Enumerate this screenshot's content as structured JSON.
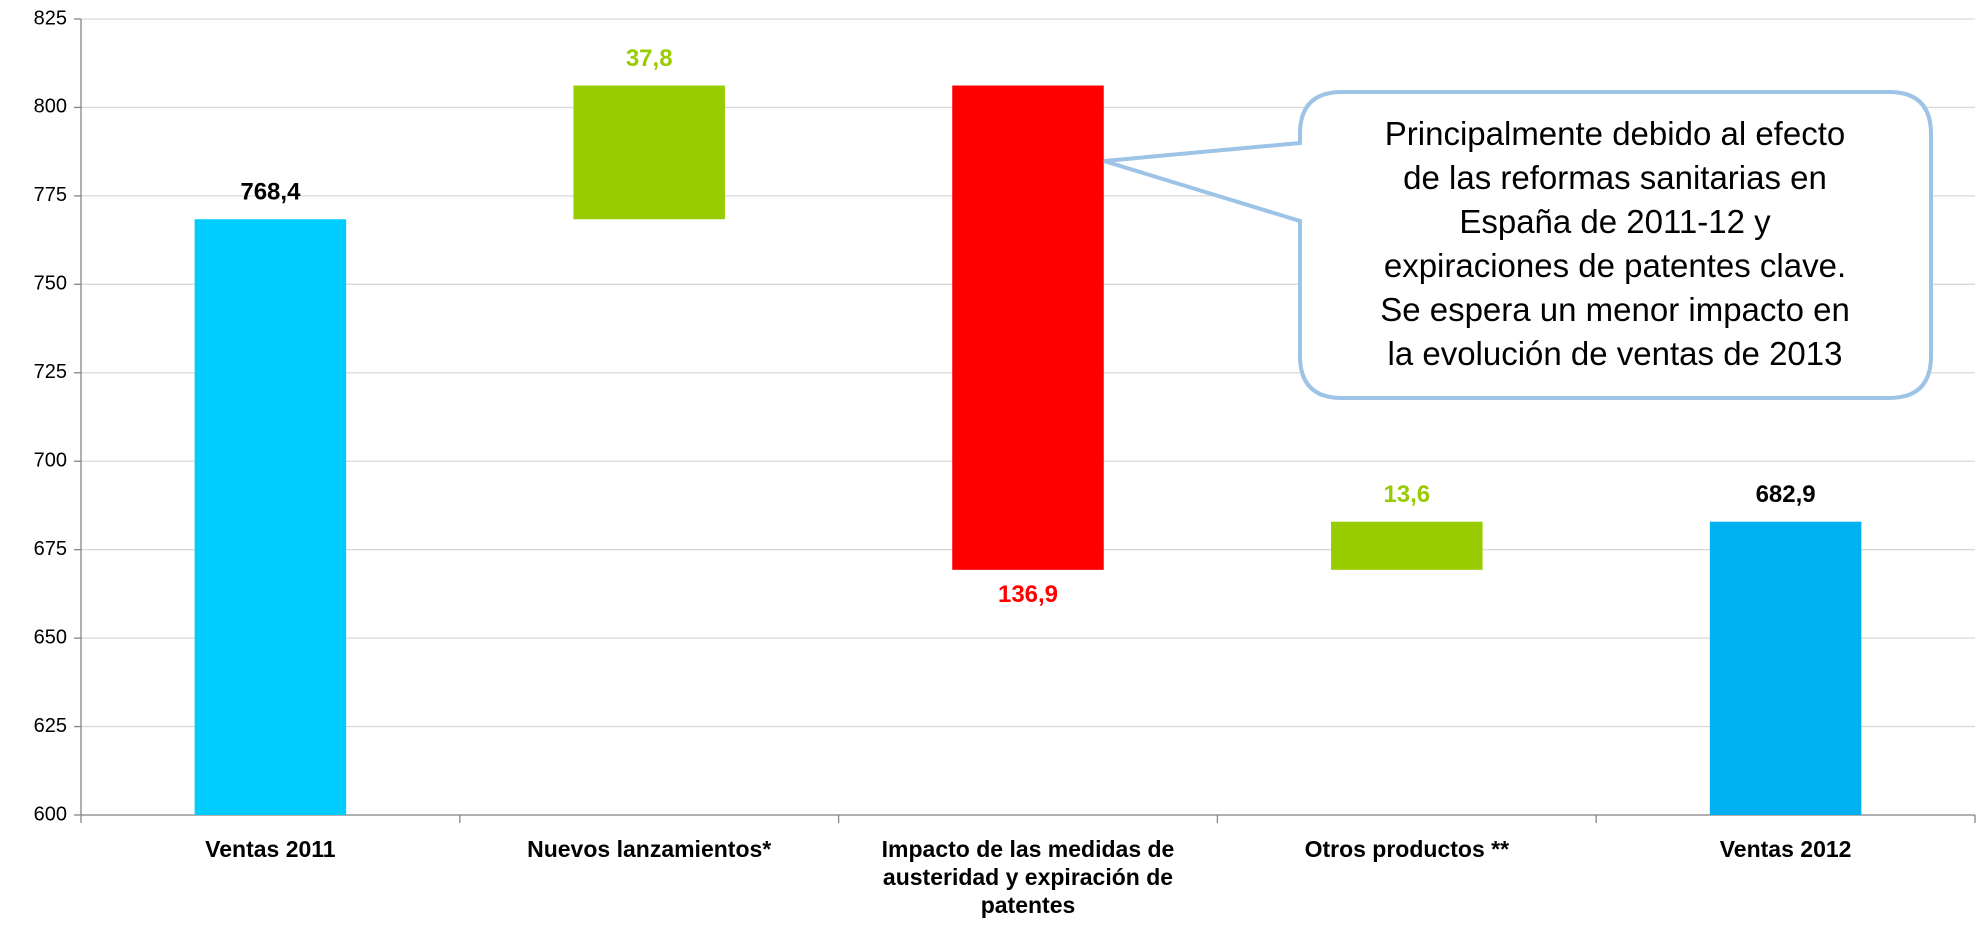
{
  "chart_data": {
    "type": "waterfall",
    "categories": [
      "Ventas 2011",
      "Nuevos lanzamientos*",
      "Impacto de las medidas de austeridad y expiración de patentes",
      "Otros productos **",
      "Ventas 2012"
    ],
    "values": [
      768.4,
      37.8,
      -136.9,
      13.6,
      682.9
    ],
    "value_labels": [
      "768,4",
      "37,8",
      "136,9",
      "13,6",
      "682,9"
    ],
    "measure": [
      "absolute",
      "relative",
      "relative",
      "relative",
      "absolute"
    ],
    "colors": [
      "#00ccff",
      "#99cc00",
      "#ff0000",
      "#99cc00",
      "#00b0f0"
    ],
    "ylim": [
      600,
      825
    ],
    "yticks": [
      600,
      625,
      650,
      675,
      700,
      725,
      750,
      775,
      800,
      825
    ],
    "grid": true,
    "annotation": [
      "Principalmente debido al efecto",
      "de las reformas sanitarias en",
      "España de 2011-12 y",
      "expiraciones de patentes clave.",
      "Se espera un menor impacto en",
      "la evolución de ventas de 2013"
    ]
  }
}
